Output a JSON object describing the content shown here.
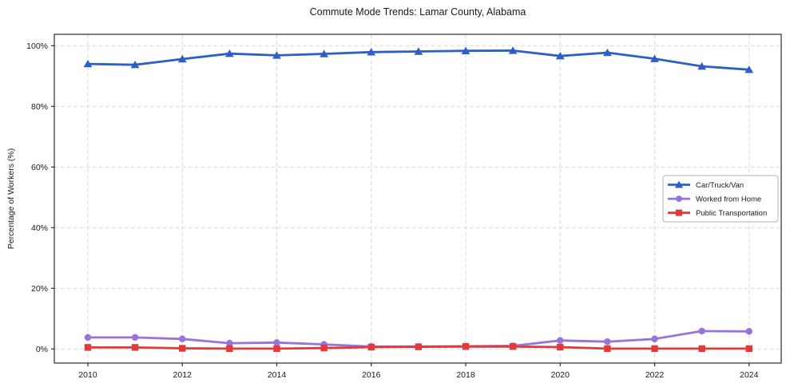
{
  "figure": {
    "background_color": "#ffffff",
    "grid_color": "#d9d9d9",
    "spine_color": "#2b2b2b",
    "tick_label_color": "#1a1a1a",
    "legend_border_color": "#b3b3b3"
  },
  "chart_data": {
    "type": "line",
    "title": "Commute Mode Trends: Lamar County, Alabama",
    "xlabel": "",
    "ylabel": "Percentage of Workers (%)",
    "grid": true,
    "legend_position": "center right",
    "x": [
      2010,
      2011,
      2012,
      2013,
      2014,
      2015,
      2016,
      2017,
      2018,
      2019,
      2020,
      2021,
      2022,
      2023,
      2024
    ],
    "series": [
      {
        "id": "car-truck-van",
        "name": "Car/Truck/Van",
        "color": "#2f5fc5",
        "marker": "triangle",
        "values": [
          94.0,
          93.7,
          95.6,
          97.4,
          96.8,
          97.3,
          97.9,
          98.1,
          98.3,
          98.4,
          96.6,
          97.7,
          95.7,
          93.2,
          92.1
        ]
      },
      {
        "id": "worked-from-home",
        "name": "Worked from Home",
        "color": "#9773da",
        "marker": "circle",
        "values": [
          3.8,
          3.8,
          3.3,
          1.9,
          2.1,
          1.5,
          0.8,
          0.8,
          0.9,
          1.0,
          2.8,
          2.4,
          3.3,
          5.9,
          5.8
        ]
      },
      {
        "id": "public-transportation",
        "name": "Public Transportation",
        "color": "#e03a3a",
        "marker": "square",
        "values": [
          0.5,
          0.5,
          0.2,
          0.1,
          0.1,
          0.3,
          0.6,
          0.7,
          0.8,
          0.8,
          0.6,
          0.1,
          0.1,
          0.1,
          0.1
        ]
      }
    ],
    "xticks": [
      2010,
      2012,
      2014,
      2016,
      2018,
      2020,
      2022,
      2024
    ],
    "yticks": [
      {
        "value": 0,
        "label": "0%"
      },
      {
        "value": 20,
        "label": "20%"
      },
      {
        "value": 40,
        "label": "40%"
      },
      {
        "value": 60,
        "label": "60%"
      },
      {
        "value": 80,
        "label": "80%"
      },
      {
        "value": 100,
        "label": "100%"
      }
    ],
    "xlim": [
      2009.29,
      2024.68
    ],
    "ylim": [
      -4.66,
      103.76
    ]
  }
}
